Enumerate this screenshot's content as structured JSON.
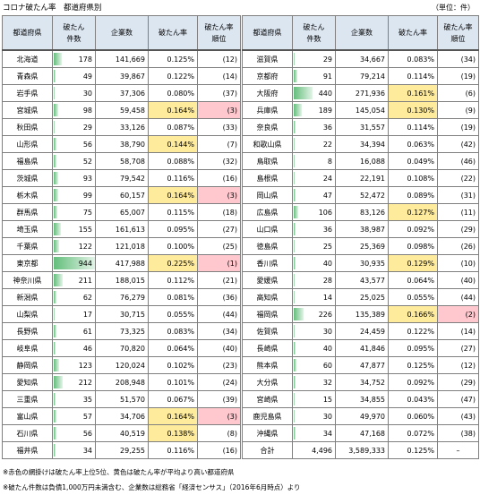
{
  "title": "コロナ破たん率　都道府県別",
  "unit": "（単位：件）",
  "headers": {
    "pref": "都道府県",
    "count": "破たん\n件数",
    "companies": "企業数",
    "rate": "破たん率",
    "rank": "破たん率\n順位"
  },
  "max_count": 944,
  "left": [
    {
      "pref": "北海道",
      "count": "178",
      "companies": "141,669",
      "rate": "0.125%",
      "rank": "(12)",
      "hl": ""
    },
    {
      "pref": "青森県",
      "count": "49",
      "companies": "39,867",
      "rate": "0.122%",
      "rank": "(14)",
      "hl": ""
    },
    {
      "pref": "岩手県",
      "count": "30",
      "companies": "37,306",
      "rate": "0.080%",
      "rank": "(37)",
      "hl": ""
    },
    {
      "pref": "宮城県",
      "count": "98",
      "companies": "59,458",
      "rate": "0.164%",
      "rank": "(3)",
      "hl": "pink"
    },
    {
      "pref": "秋田県",
      "count": "29",
      "companies": "33,126",
      "rate": "0.087%",
      "rank": "(33)",
      "hl": ""
    },
    {
      "pref": "山形県",
      "count": "56",
      "companies": "38,790",
      "rate": "0.144%",
      "rank": "(7)",
      "hl": "yellow"
    },
    {
      "pref": "福島県",
      "count": "52",
      "companies": "58,708",
      "rate": "0.088%",
      "rank": "(32)",
      "hl": ""
    },
    {
      "pref": "茨城県",
      "count": "93",
      "companies": "79,542",
      "rate": "0.116%",
      "rank": "(16)",
      "hl": ""
    },
    {
      "pref": "栃木県",
      "count": "99",
      "companies": "60,157",
      "rate": "0.164%",
      "rank": "(3)",
      "hl": "pink"
    },
    {
      "pref": "群馬県",
      "count": "75",
      "companies": "65,007",
      "rate": "0.115%",
      "rank": "(18)",
      "hl": ""
    },
    {
      "pref": "埼玉県",
      "count": "155",
      "companies": "161,613",
      "rate": "0.095%",
      "rank": "(27)",
      "hl": ""
    },
    {
      "pref": "千葉県",
      "count": "122",
      "companies": "121,018",
      "rate": "0.100%",
      "rank": "(25)",
      "hl": ""
    },
    {
      "pref": "東京都",
      "count": "944",
      "companies": "417,988",
      "rate": "0.225%",
      "rank": "(1)",
      "hl": "pink"
    },
    {
      "pref": "神奈川県",
      "count": "211",
      "companies": "188,015",
      "rate": "0.112%",
      "rank": "(21)",
      "hl": ""
    },
    {
      "pref": "新潟県",
      "count": "62",
      "companies": "76,279",
      "rate": "0.081%",
      "rank": "(36)",
      "hl": ""
    },
    {
      "pref": "山梨県",
      "count": "17",
      "companies": "30,715",
      "rate": "0.055%",
      "rank": "(44)",
      "hl": ""
    },
    {
      "pref": "長野県",
      "count": "61",
      "companies": "73,325",
      "rate": "0.083%",
      "rank": "(34)",
      "hl": ""
    },
    {
      "pref": "岐阜県",
      "count": "46",
      "companies": "70,820",
      "rate": "0.064%",
      "rank": "(40)",
      "hl": ""
    },
    {
      "pref": "静岡県",
      "count": "123",
      "companies": "120,024",
      "rate": "0.102%",
      "rank": "(23)",
      "hl": ""
    },
    {
      "pref": "愛知県",
      "count": "212",
      "companies": "208,948",
      "rate": "0.101%",
      "rank": "(24)",
      "hl": ""
    },
    {
      "pref": "三重県",
      "count": "35",
      "companies": "51,570",
      "rate": "0.067%",
      "rank": "(39)",
      "hl": ""
    },
    {
      "pref": "富山県",
      "count": "57",
      "companies": "34,706",
      "rate": "0.164%",
      "rank": "(3)",
      "hl": "pink"
    },
    {
      "pref": "石川県",
      "count": "56",
      "companies": "40,519",
      "rate": "0.138%",
      "rank": "(8)",
      "hl": "yellow"
    },
    {
      "pref": "福井県",
      "count": "34",
      "companies": "29,255",
      "rate": "0.116%",
      "rank": "(16)",
      "hl": ""
    }
  ],
  "right": [
    {
      "pref": "滋賀県",
      "count": "29",
      "companies": "34,667",
      "rate": "0.083%",
      "rank": "(34)",
      "hl": ""
    },
    {
      "pref": "京都府",
      "count": "91",
      "companies": "79,214",
      "rate": "0.114%",
      "rank": "(19)",
      "hl": ""
    },
    {
      "pref": "大阪府",
      "count": "440",
      "companies": "271,936",
      "rate": "0.161%",
      "rank": "(6)",
      "hl": "yellow"
    },
    {
      "pref": "兵庫県",
      "count": "189",
      "companies": "145,054",
      "rate": "0.130%",
      "rank": "(9)",
      "hl": "yellow"
    },
    {
      "pref": "奈良県",
      "count": "36",
      "companies": "31,557",
      "rate": "0.114%",
      "rank": "(19)",
      "hl": ""
    },
    {
      "pref": "和歌山県",
      "count": "22",
      "companies": "34,394",
      "rate": "0.063%",
      "rank": "(42)",
      "hl": ""
    },
    {
      "pref": "鳥取県",
      "count": "8",
      "companies": "16,088",
      "rate": "0.049%",
      "rank": "(46)",
      "hl": ""
    },
    {
      "pref": "島根県",
      "count": "24",
      "companies": "22,191",
      "rate": "0.108%",
      "rank": "(22)",
      "hl": ""
    },
    {
      "pref": "岡山県",
      "count": "47",
      "companies": "52,472",
      "rate": "0.089%",
      "rank": "(31)",
      "hl": ""
    },
    {
      "pref": "広島県",
      "count": "106",
      "companies": "83,126",
      "rate": "0.127%",
      "rank": "(11)",
      "hl": "yellow"
    },
    {
      "pref": "山口県",
      "count": "36",
      "companies": "38,987",
      "rate": "0.092%",
      "rank": "(29)",
      "hl": ""
    },
    {
      "pref": "徳島県",
      "count": "25",
      "companies": "25,369",
      "rate": "0.098%",
      "rank": "(26)",
      "hl": ""
    },
    {
      "pref": "香川県",
      "count": "40",
      "companies": "30,935",
      "rate": "0.129%",
      "rank": "(10)",
      "hl": "yellow"
    },
    {
      "pref": "愛媛県",
      "count": "28",
      "companies": "43,577",
      "rate": "0.064%",
      "rank": "(40)",
      "hl": ""
    },
    {
      "pref": "高知県",
      "count": "14",
      "companies": "25,025",
      "rate": "0.055%",
      "rank": "(44)",
      "hl": ""
    },
    {
      "pref": "福岡県",
      "count": "226",
      "companies": "135,389",
      "rate": "0.166%",
      "rank": "(2)",
      "hl": "pink"
    },
    {
      "pref": "佐賀県",
      "count": "30",
      "companies": "24,459",
      "rate": "0.122%",
      "rank": "(14)",
      "hl": ""
    },
    {
      "pref": "長崎県",
      "count": "40",
      "companies": "41,846",
      "rate": "0.095%",
      "rank": "(27)",
      "hl": ""
    },
    {
      "pref": "熊本県",
      "count": "60",
      "companies": "47,877",
      "rate": "0.125%",
      "rank": "(12)",
      "hl": ""
    },
    {
      "pref": "大分県",
      "count": "32",
      "companies": "34,752",
      "rate": "0.092%",
      "rank": "(29)",
      "hl": ""
    },
    {
      "pref": "宮崎県",
      "count": "15",
      "companies": "34,855",
      "rate": "0.043%",
      "rank": "(47)",
      "hl": ""
    },
    {
      "pref": "鹿児島県",
      "count": "30",
      "companies": "49,970",
      "rate": "0.060%",
      "rank": "(43)",
      "hl": ""
    },
    {
      "pref": "沖縄県",
      "count": "34",
      "companies": "47,168",
      "rate": "0.072%",
      "rank": "(38)",
      "hl": ""
    }
  ],
  "total": {
    "label": "合計",
    "count": "4,496",
    "companies": "3,589,333",
    "rate": "0.125%",
    "rank": "–"
  },
  "footnotes": [
    "※赤色の網掛けは破たん率上位5位、黄色は破たん率が平均より高い都道府県",
    "※破たん件数は負債1,000万円未満含む、企業数は総務省「経済センサス」（2016年6月時点）より"
  ],
  "colors": {
    "header_bg": "#dce6f1",
    "yellow": "#ffeb9c",
    "pink": "#ffc7ce",
    "bar": "#63be7b"
  }
}
